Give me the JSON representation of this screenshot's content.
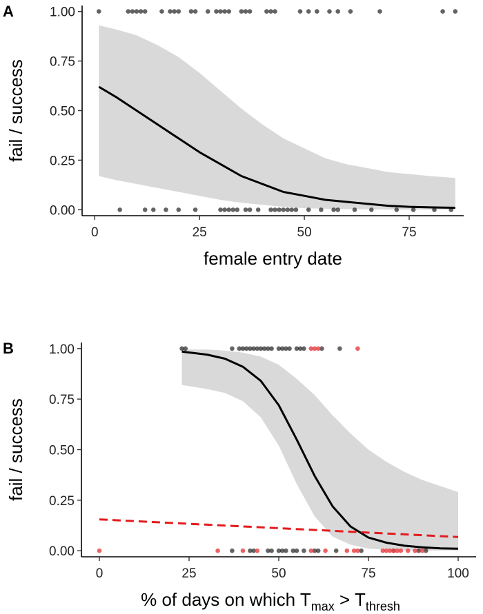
{
  "colors": {
    "ribbon": "#d9d9d9",
    "fit_line": "#000000",
    "point": "#222222",
    "point_red": "#e8474a",
    "dashed_line": "#e31a1c"
  },
  "chart_data": [
    {
      "panel": "A",
      "type": "scatter",
      "xlabel": "female entry date",
      "ylabel": "fail / success",
      "xlim": [
        -3,
        88
      ],
      "ylim": [
        -0.03,
        1.03
      ],
      "x_ticks": [
        "0",
        "25",
        "50",
        "75"
      ],
      "x_tick_values": [
        0,
        25,
        50,
        75
      ],
      "y_ticks": [
        "0.00",
        "0.25",
        "0.50",
        "0.75",
        "1.00"
      ],
      "y_tick_values": [
        0,
        0.25,
        0.5,
        0.75,
        1
      ],
      "grid": false,
      "points": [
        {
          "x": 1,
          "y": 1
        },
        {
          "x": 8,
          "y": 1
        },
        {
          "x": 9,
          "y": 1
        },
        {
          "x": 10,
          "y": 1
        },
        {
          "x": 11,
          "y": 1
        },
        {
          "x": 12,
          "y": 1
        },
        {
          "x": 16,
          "y": 1
        },
        {
          "x": 18,
          "y": 1
        },
        {
          "x": 19,
          "y": 1
        },
        {
          "x": 20,
          "y": 1
        },
        {
          "x": 23,
          "y": 1
        },
        {
          "x": 24,
          "y": 1
        },
        {
          "x": 27,
          "y": 1
        },
        {
          "x": 29,
          "y": 1
        },
        {
          "x": 30,
          "y": 1
        },
        {
          "x": 31,
          "y": 1
        },
        {
          "x": 32,
          "y": 1
        },
        {
          "x": 35,
          "y": 1
        },
        {
          "x": 36,
          "y": 1
        },
        {
          "x": 37,
          "y": 1
        },
        {
          "x": 41,
          "y": 1
        },
        {
          "x": 42,
          "y": 1
        },
        {
          "x": 43,
          "y": 1
        },
        {
          "x": 49,
          "y": 1
        },
        {
          "x": 51,
          "y": 1
        },
        {
          "x": 53,
          "y": 1
        },
        {
          "x": 56,
          "y": 1
        },
        {
          "x": 58,
          "y": 1
        },
        {
          "x": 61,
          "y": 1
        },
        {
          "x": 68,
          "y": 1
        },
        {
          "x": 83,
          "y": 1
        },
        {
          "x": 86,
          "y": 1
        },
        {
          "x": 6,
          "y": 0
        },
        {
          "x": 12,
          "y": 0
        },
        {
          "x": 14,
          "y": 0
        },
        {
          "x": 17,
          "y": 0
        },
        {
          "x": 20,
          "y": 0
        },
        {
          "x": 24,
          "y": 0
        },
        {
          "x": 30,
          "y": 0
        },
        {
          "x": 31,
          "y": 0
        },
        {
          "x": 32,
          "y": 0
        },
        {
          "x": 33,
          "y": 0
        },
        {
          "x": 34,
          "y": 0
        },
        {
          "x": 36,
          "y": 0
        },
        {
          "x": 37,
          "y": 0
        },
        {
          "x": 39,
          "y": 0
        },
        {
          "x": 42,
          "y": 0
        },
        {
          "x": 43,
          "y": 0
        },
        {
          "x": 44,
          "y": 0
        },
        {
          "x": 45,
          "y": 0
        },
        {
          "x": 46,
          "y": 0
        },
        {
          "x": 47,
          "y": 0
        },
        {
          "x": 48,
          "y": 0
        },
        {
          "x": 51,
          "y": 0
        },
        {
          "x": 54,
          "y": 0
        },
        {
          "x": 57,
          "y": 0
        },
        {
          "x": 58,
          "y": 0
        },
        {
          "x": 62,
          "y": 0
        },
        {
          "x": 66,
          "y": 0
        },
        {
          "x": 72,
          "y": 0
        },
        {
          "x": 76,
          "y": 0
        },
        {
          "x": 81,
          "y": 0
        },
        {
          "x": 85,
          "y": 0
        }
      ],
      "fit_line": {
        "x": [
          1,
          5,
          10,
          15,
          20,
          25,
          30,
          35,
          40,
          45,
          50,
          55,
          60,
          65,
          70,
          75,
          80,
          86
        ],
        "y": [
          0.62,
          0.57,
          0.5,
          0.43,
          0.36,
          0.29,
          0.23,
          0.17,
          0.13,
          0.09,
          0.07,
          0.05,
          0.04,
          0.03,
          0.02,
          0.015,
          0.012,
          0.01
        ]
      },
      "ribbon": {
        "x": [
          1,
          5,
          10,
          15,
          20,
          25,
          30,
          35,
          40,
          45,
          50,
          55,
          60,
          65,
          70,
          75,
          80,
          86
        ],
        "upper": [
          0.93,
          0.91,
          0.88,
          0.83,
          0.77,
          0.69,
          0.6,
          0.51,
          0.43,
          0.36,
          0.31,
          0.26,
          0.23,
          0.21,
          0.19,
          0.18,
          0.17,
          0.16
        ],
        "lower": [
          0.17,
          0.15,
          0.13,
          0.11,
          0.09,
          0.07,
          0.05,
          0.035,
          0.025,
          0.015,
          0.008,
          0.005,
          0.003,
          0.002,
          0.001,
          0.001,
          0.001,
          0.001
        ]
      }
    },
    {
      "panel": "B",
      "type": "scatter",
      "xlabel_parts": {
        "pre": "% of days on which T",
        "sub1": "max",
        "mid": " > T",
        "sub2": "thresh"
      },
      "ylabel": "fail / success",
      "xlim": [
        -5,
        105
      ],
      "ylim": [
        -0.03,
        1.03
      ],
      "x_ticks": [
        "0",
        "25",
        "50",
        "75",
        "100"
      ],
      "x_tick_values": [
        0,
        25,
        50,
        75,
        100
      ],
      "y_ticks": [
        "0.00",
        "0.25",
        "0.50",
        "0.75",
        "1.00"
      ],
      "y_tick_values": [
        0,
        0.25,
        0.5,
        0.75,
        1
      ],
      "grid": false,
      "points_black": [
        {
          "x": 23,
          "y": 1
        },
        {
          "x": 24,
          "y": 1
        },
        {
          "x": 37,
          "y": 1
        },
        {
          "x": 39,
          "y": 1
        },
        {
          "x": 40,
          "y": 1
        },
        {
          "x": 41,
          "y": 1
        },
        {
          "x": 42,
          "y": 1
        },
        {
          "x": 43,
          "y": 1
        },
        {
          "x": 44,
          "y": 1
        },
        {
          "x": 45,
          "y": 1
        },
        {
          "x": 46,
          "y": 1
        },
        {
          "x": 47,
          "y": 1
        },
        {
          "x": 48,
          "y": 1
        },
        {
          "x": 50,
          "y": 1
        },
        {
          "x": 51,
          "y": 1
        },
        {
          "x": 52,
          "y": 1
        },
        {
          "x": 53,
          "y": 1
        },
        {
          "x": 55,
          "y": 1
        },
        {
          "x": 56,
          "y": 1
        },
        {
          "x": 57,
          "y": 1
        },
        {
          "x": 62,
          "y": 1
        },
        {
          "x": 67,
          "y": 1
        },
        {
          "x": 37,
          "y": 0
        },
        {
          "x": 42,
          "y": 0
        },
        {
          "x": 43,
          "y": 0
        },
        {
          "x": 47,
          "y": 0
        },
        {
          "x": 48,
          "y": 0
        },
        {
          "x": 50,
          "y": 0
        },
        {
          "x": 51,
          "y": 0
        },
        {
          "x": 52,
          "y": 0
        },
        {
          "x": 54,
          "y": 0
        },
        {
          "x": 55,
          "y": 0
        },
        {
          "x": 57,
          "y": 0
        },
        {
          "x": 60,
          "y": 0
        },
        {
          "x": 61,
          "y": 0
        },
        {
          "x": 66,
          "y": 0
        },
        {
          "x": 73,
          "y": 0
        },
        {
          "x": 82,
          "y": 0
        },
        {
          "x": 89,
          "y": 0
        },
        {
          "x": 91,
          "y": 0
        }
      ],
      "points_red": [
        {
          "x": 59,
          "y": 1
        },
        {
          "x": 60,
          "y": 1
        },
        {
          "x": 61,
          "y": 1
        },
        {
          "x": 72,
          "y": 1
        },
        {
          "x": 0,
          "y": 0
        },
        {
          "x": 33,
          "y": 0
        },
        {
          "x": 40,
          "y": 0
        },
        {
          "x": 44,
          "y": 0
        },
        {
          "x": 59,
          "y": 0
        },
        {
          "x": 63,
          "y": 0
        },
        {
          "x": 69,
          "y": 0
        },
        {
          "x": 71,
          "y": 0
        },
        {
          "x": 72,
          "y": 0
        },
        {
          "x": 79,
          "y": 0
        },
        {
          "x": 80,
          "y": 0
        },
        {
          "x": 81,
          "y": 0
        },
        {
          "x": 82,
          "y": 0
        },
        {
          "x": 83,
          "y": 0
        },
        {
          "x": 84,
          "y": 0
        },
        {
          "x": 86,
          "y": 0
        },
        {
          "x": 88,
          "y": 0
        },
        {
          "x": 90,
          "y": 0
        }
      ],
      "fit_line": {
        "x": [
          23,
          30,
          35,
          40,
          45,
          50,
          55,
          60,
          65,
          70,
          75,
          80,
          85,
          90,
          95,
          100
        ],
        "y": [
          0.985,
          0.97,
          0.95,
          0.91,
          0.84,
          0.72,
          0.55,
          0.37,
          0.22,
          0.12,
          0.065,
          0.04,
          0.025,
          0.017,
          0.012,
          0.01
        ]
      },
      "ribbon": {
        "x": [
          23,
          30,
          35,
          40,
          45,
          50,
          55,
          60,
          65,
          70,
          75,
          80,
          85,
          90,
          95,
          100
        ],
        "upper": [
          0.995,
          0.995,
          0.99,
          0.98,
          0.96,
          0.92,
          0.85,
          0.77,
          0.67,
          0.58,
          0.5,
          0.44,
          0.39,
          0.35,
          0.32,
          0.29
        ],
        "lower": [
          0.82,
          0.8,
          0.78,
          0.74,
          0.66,
          0.52,
          0.33,
          0.17,
          0.07,
          0.03,
          0.01,
          0.005,
          0.002,
          0.001,
          0.001,
          0.001
        ]
      },
      "dashed_line": {
        "x": [
          0,
          100
        ],
        "y": [
          0.155,
          0.068
        ]
      }
    }
  ]
}
